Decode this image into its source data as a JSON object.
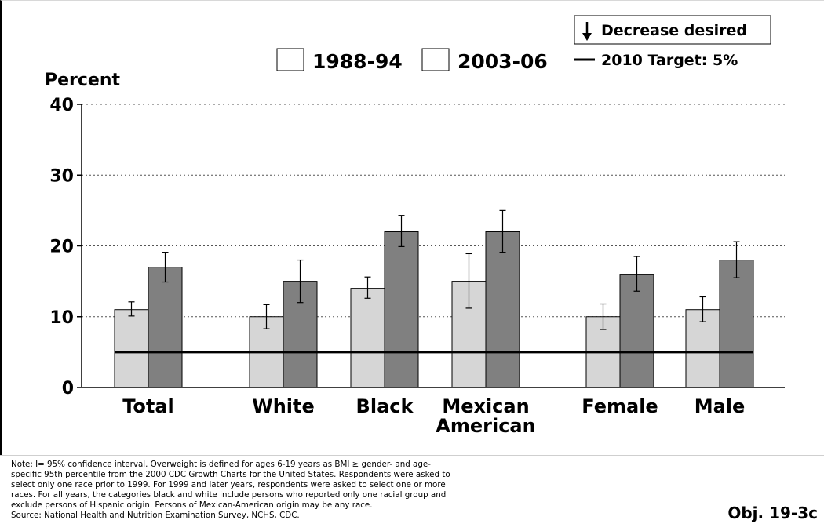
{
  "chart_data": {
    "type": "bar",
    "ylabel": "Percent",
    "ylim": [
      0,
      40
    ],
    "yticks": [
      0,
      10,
      20,
      30,
      40
    ],
    "grid": "dotted horizontal",
    "legend_position": "top",
    "categories": [
      {
        "label": [
          "Total"
        ]
      },
      {
        "label": [
          "White"
        ]
      },
      {
        "label": [
          "Black"
        ]
      },
      {
        "label": [
          "Mexican",
          "American"
        ]
      },
      {
        "label": [
          "Female"
        ]
      },
      {
        "label": [
          "Male"
        ]
      }
    ],
    "series": [
      {
        "name": "1988-94",
        "color": "#d6d6d6",
        "values": [
          11,
          10,
          14,
          15,
          10,
          11
        ],
        "ci_low": [
          10.1,
          8.3,
          12.6,
          11.2,
          8.2,
          9.3
        ],
        "ci_high": [
          12.1,
          11.7,
          15.6,
          18.9,
          11.8,
          12.8
        ]
      },
      {
        "name": "2003-06",
        "color": "#808080",
        "values": [
          17,
          15,
          22,
          22,
          16,
          18
        ],
        "ci_low": [
          14.9,
          12,
          19.9,
          19.1,
          13.6,
          15.5
        ],
        "ci_high": [
          19.1,
          18,
          24.3,
          25,
          18.5,
          20.6
        ]
      }
    ],
    "target": {
      "label": "2010 Target: 5%",
      "value": 5
    },
    "direction_label": "Decrease desired"
  },
  "footnote": [
    "Note: I= 95% confidence interval. Overweight is defined for ages 6-19 years as BMI ≥ gender- and age-",
    "specific 95th percentile from the 2000 CDC Growth Charts for the United States. Respondents were asked to",
    "select only one race prior to 1999. For 1999 and later years, respondents were asked to select one or more",
    "races.  For all years, the categories black and white include persons who reported only one racial group and",
    "exclude persons of Hispanic origin. Persons of Mexican-American origin may be any race.",
    "Source: National Health and Nutrition Examination Survey, NCHS, CDC."
  ],
  "objective_label": "Obj. 19-3c"
}
